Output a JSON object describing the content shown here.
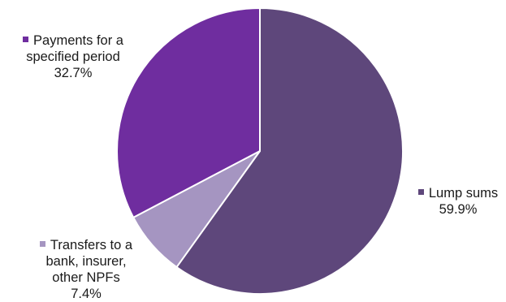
{
  "chart_data": {
    "type": "pie",
    "start_angle_deg": 0,
    "direction": "clockwise",
    "slices": [
      {
        "key": "lump",
        "label_lines": [
          "Lump sums"
        ],
        "value_text": "59.9%",
        "value": 59.9,
        "color": "#5e477b"
      },
      {
        "key": "transfers",
        "label_lines": [
          "Transfers to a",
          "bank, insurer,",
          "other NPFs"
        ],
        "value_text": "7.4%",
        "value": 7.4,
        "color": "#a595c1"
      },
      {
        "key": "payments",
        "label_lines": [
          "Payments for a",
          "specified period"
        ],
        "value_text": "32.7%",
        "value": 32.7,
        "color": "#6f2d9f"
      }
    ]
  }
}
